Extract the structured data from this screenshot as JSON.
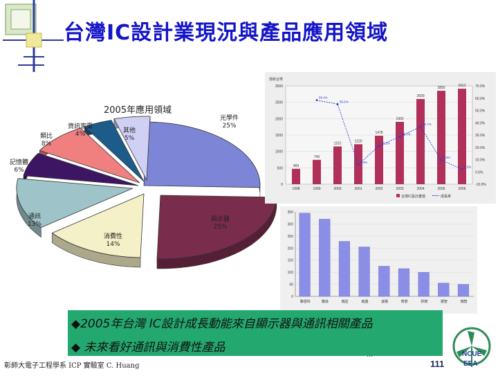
{
  "slide": {
    "title": "台灣IC設計業現況與產品應用領域",
    "page_number": "111",
    "footer": "彰師大電子工程學系 ICP 實驗室 C. Huang",
    "ellipsis": "...",
    "logo_line1": "NCUE",
    "logo_line2": "EEA"
  },
  "callout": {
    "line1": "◆2005年台灣 IC設計成長動能來自顯示器與通訊相關產品",
    "line2": "◆ 未來看好通訊與消費性產品"
  },
  "colors": {
    "title": "#1414c8",
    "callout_bg": "#23a86f",
    "bar_red": "#b0305a",
    "bar_blue": "#8a8ee6",
    "line_blue": "#2b3bd6"
  },
  "chart_data": [
    {
      "type": "pie",
      "title": "2005年應用領域",
      "slices": [
        {
          "label": "光學件",
          "percent": "25%",
          "value": 25,
          "color": "#7d86d6"
        },
        {
          "label": "與示器",
          "percent": "25%",
          "value": 25,
          "color": "#7a2c4d"
        },
        {
          "label": "消費性",
          "percent": "14%",
          "value": 14,
          "color": "#f4f0c8"
        },
        {
          "label": "通訊",
          "percent": "13%",
          "value": 13,
          "color": "#9ec3c8"
        },
        {
          "label": "記憶體",
          "percent": "6%",
          "value": 6,
          "color": "#3c1563"
        },
        {
          "label": "類比",
          "percent": "8%",
          "value": 8,
          "color": "#f08080"
        },
        {
          "label": "資訊家電",
          "percent": "4%",
          "value": 4,
          "color": "#1d5b8a"
        },
        {
          "label": "其他",
          "percent": "5%",
          "value": 5,
          "color": "#cfd0f4"
        }
      ]
    },
    {
      "type": "bar",
      "ylabel": "億新台幣",
      "ylim": [
        0,
        3000
      ],
      "y_ticks": [
        "0",
        "500",
        "1000",
        "1500",
        "2000",
        "2500",
        "3000"
      ],
      "y2_ticks": [
        "-10.0%",
        "0.0%",
        "10.0%",
        "20.0%",
        "30.0%",
        "40.0%",
        "50.0%",
        "60.0%",
        "70.0%"
      ],
      "categories": [
        "1998",
        "1999",
        "2000",
        "2001",
        "2002",
        "2003",
        "2004",
        "2005",
        "2006"
      ],
      "series": [
        {
          "name": "台灣IC設計產值",
          "values": [
            469,
            743,
            1152,
            1220,
            1478,
            1902,
            2600,
            2850,
            2913
          ]
        },
        {
          "name": "成長率",
          "values": [
            null,
            58.4,
            55.1,
            5.9,
            21.2,
            28.7,
            36.7,
            9.6,
            2.2
          ]
        }
      ],
      "bar_labels": [
        "469",
        "743",
        "1152",
        "1220",
        "1478",
        "1902",
        "2600",
        "2850",
        "2913"
      ],
      "rate_labels": [
        "",
        "58.4%",
        "55.1%",
        "5.9%",
        "21.2%",
        "28.7%",
        "36.7%",
        "9.6%",
        "2.2%"
      ],
      "legend": [
        "台灣IC設計產值",
        "成長率"
      ],
      "legend_position": "bottom"
    },
    {
      "type": "bar",
      "ylim": [
        0,
        350
      ],
      "y_ticks": [
        "0",
        "50",
        "100",
        "150",
        "200",
        "250",
        "300",
        "350"
      ],
      "categories": [
        "聯發科",
        "聯詠",
        "瑞昱",
        "威盛",
        "凌陽",
        "奇景",
        "矽統",
        "揚智",
        "瑞智"
      ],
      "values": [
        345,
        320,
        228,
        205,
        125,
        115,
        100,
        55,
        50
      ]
    }
  ]
}
